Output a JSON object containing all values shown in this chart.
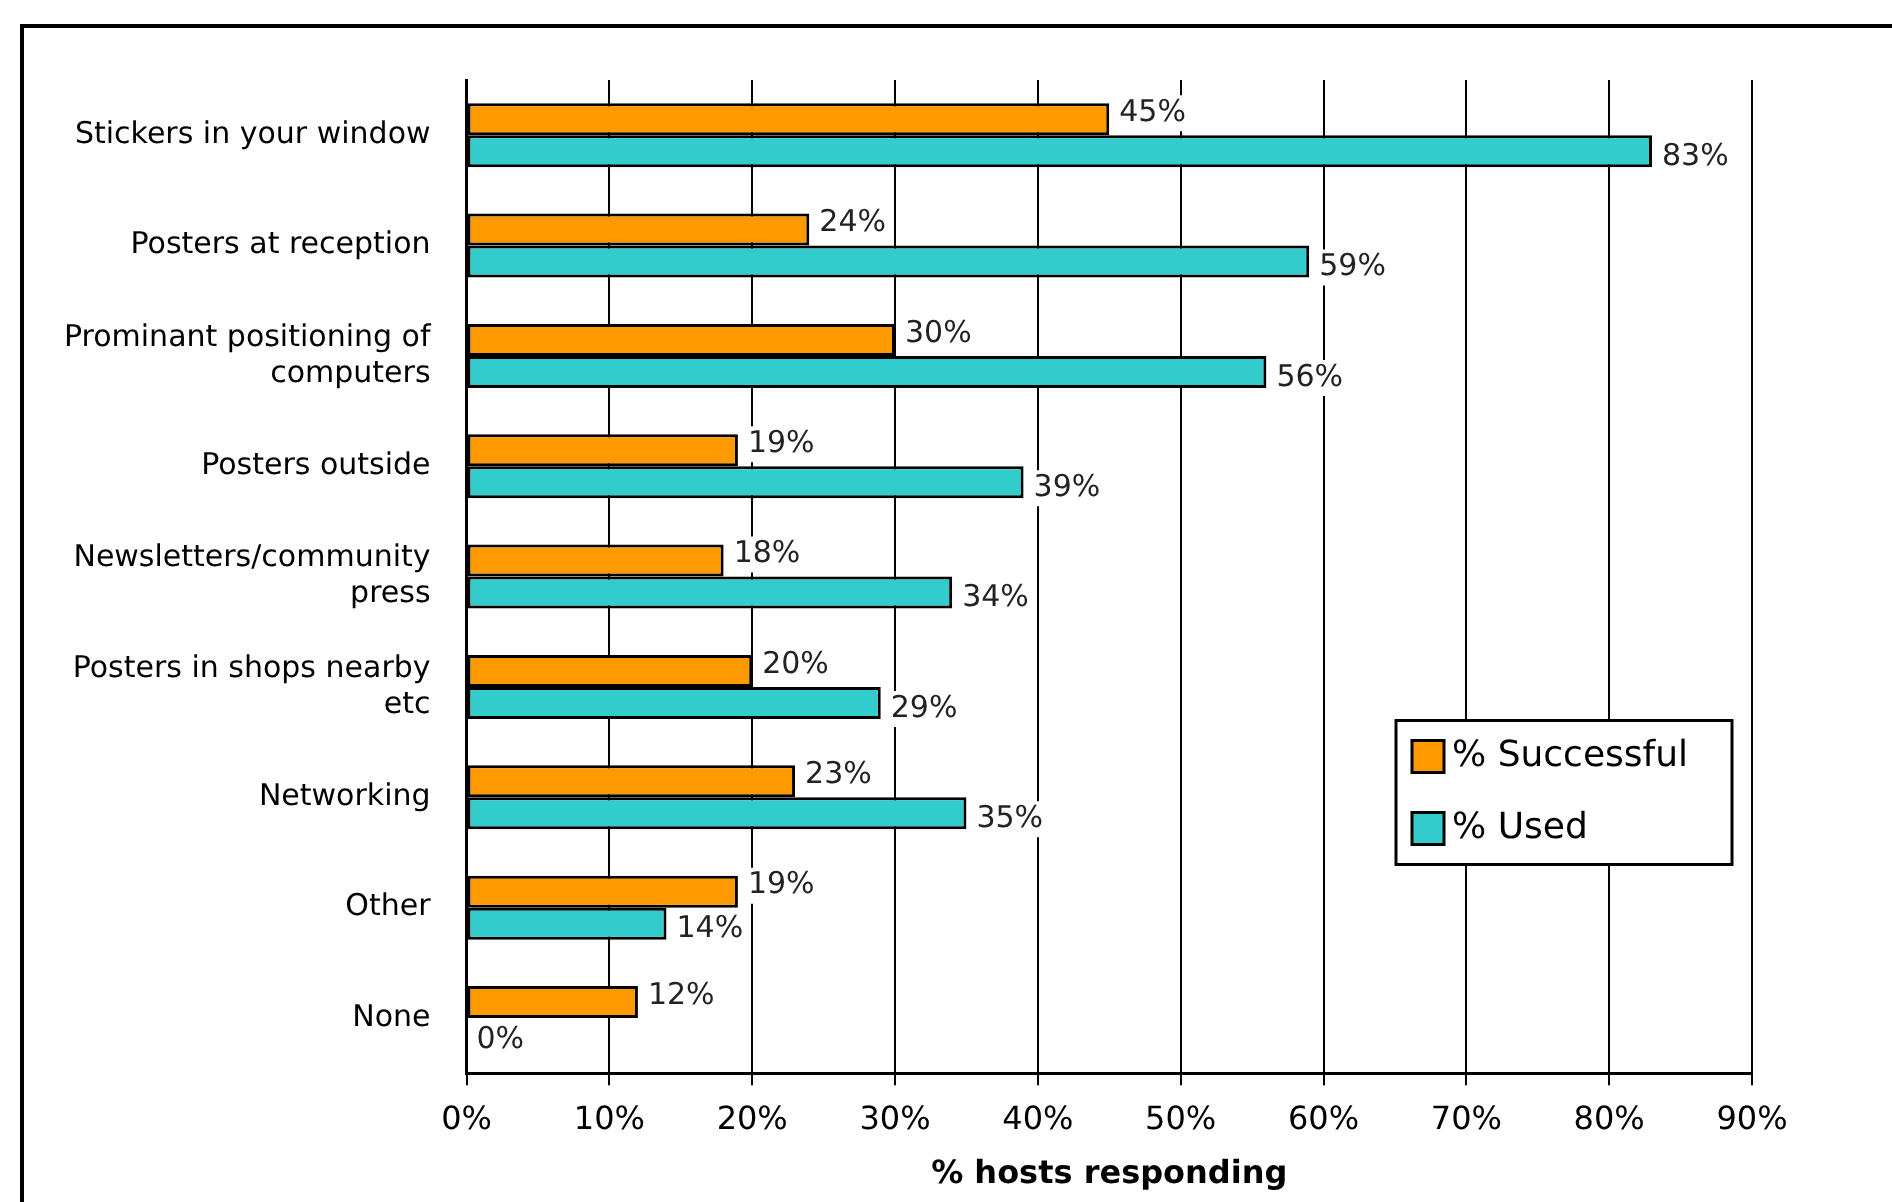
{
  "chart_data": {
    "type": "bar",
    "orientation": "horizontal",
    "xlabel": "% hosts responding",
    "categories": [
      "Stickers in your window",
      "Posters at reception",
      "Prominant positioning of computers",
      "Posters outside",
      "Newsletters/community press",
      "Posters in shops nearby etc",
      "Networking",
      "Other",
      "None"
    ],
    "series": [
      {
        "name": "% Successful",
        "color": "#ff9900",
        "values": [
          45,
          24,
          30,
          19,
          18,
          20,
          23,
          19,
          12
        ],
        "value_labels": [
          "45%",
          "24%",
          "30%",
          "19%",
          "18%",
          "20%",
          "23%",
          "19%",
          "12%"
        ]
      },
      {
        "name": "% Used",
        "color": "#33cccc",
        "values": [
          83,
          59,
          56,
          39,
          34,
          29,
          35,
          14,
          0
        ],
        "value_labels": [
          "83%",
          "59%",
          "56%",
          "39%",
          "34%",
          "29%",
          "35%",
          "14%",
          "0%"
        ]
      }
    ],
    "xlim": [
      0,
      90
    ],
    "xticks": [
      {
        "value": 0,
        "label": "0%"
      },
      {
        "value": 10,
        "label": "10%"
      },
      {
        "value": 20,
        "label": "20%"
      },
      {
        "value": 30,
        "label": "30%"
      },
      {
        "value": 40,
        "label": "40%"
      },
      {
        "value": 50,
        "label": "50%"
      },
      {
        "value": 60,
        "label": "60%"
      },
      {
        "value": 70,
        "label": "70%"
      },
      {
        "value": 80,
        "label": "80%"
      },
      {
        "value": 90,
        "label": "90%"
      }
    ],
    "grid": "x",
    "legend": "right"
  }
}
